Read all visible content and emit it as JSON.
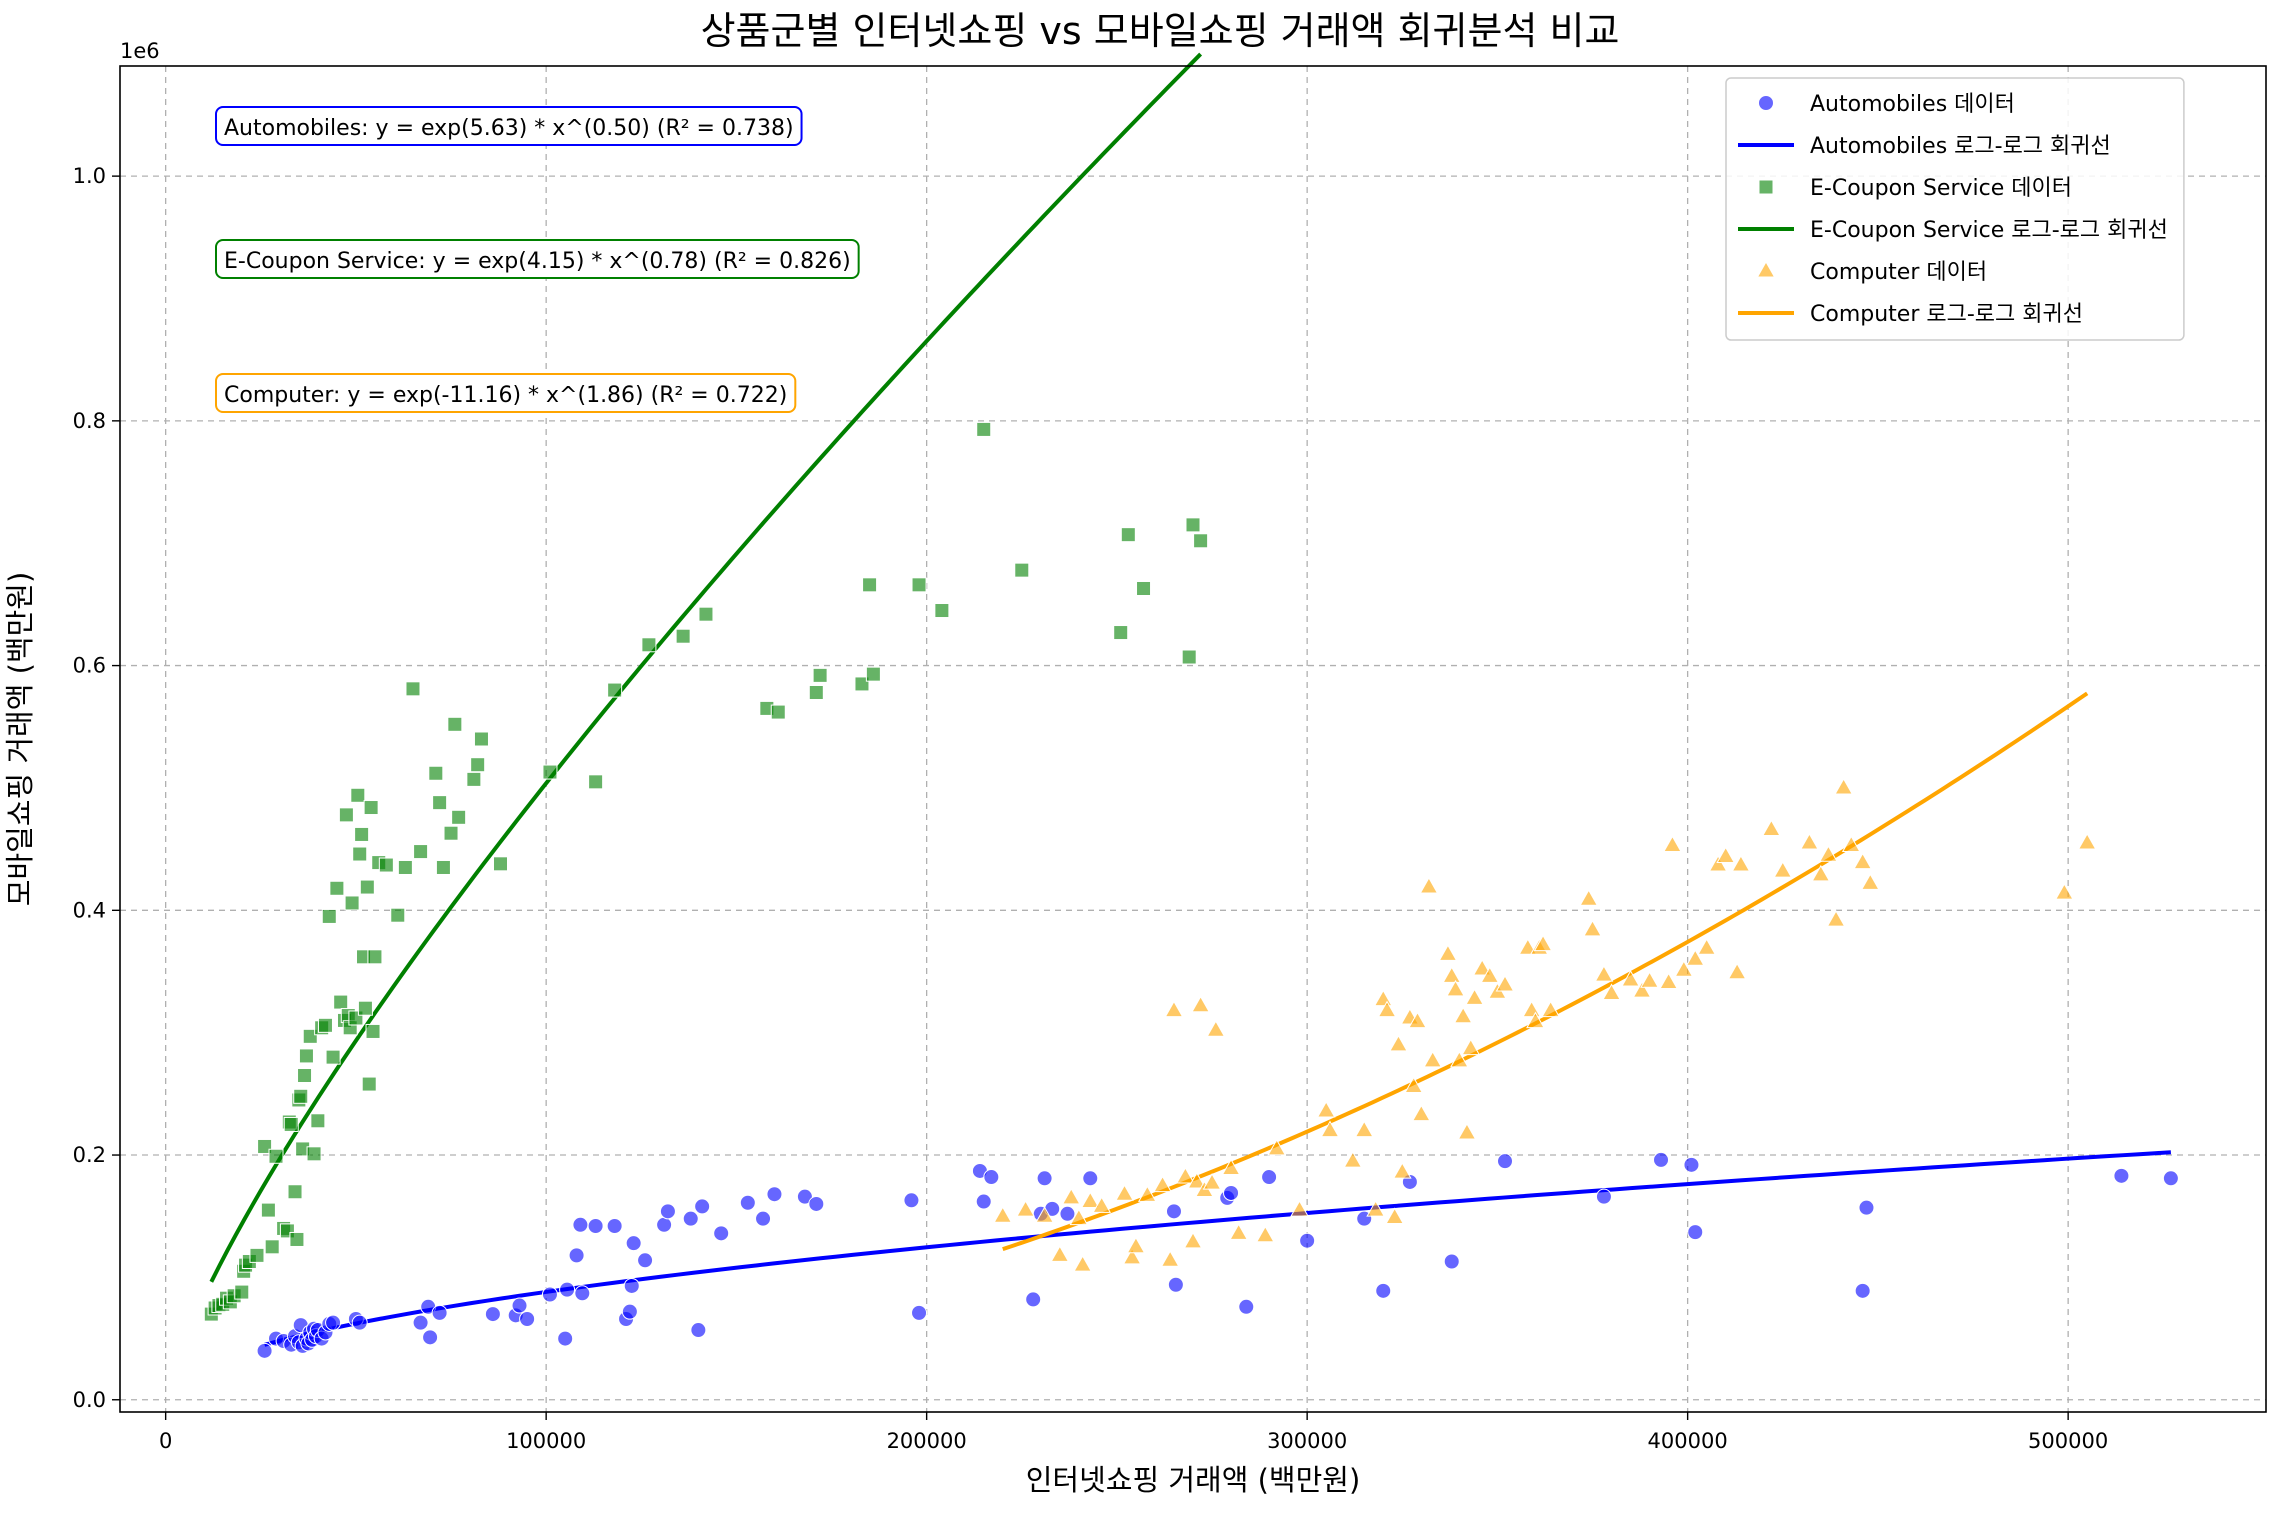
{
  "chart_data": {
    "type": "scatter",
    "title": "상품군별 인터넷쇼핑 vs 모바일쇼핑 거래액 회귀분석 비교",
    "xlabel": "인터넷쇼핑 거래액 (백만원)",
    "ylabel": "모바일쇼핑 거래액 (백만원)",
    "y_offset_label": "1e6",
    "y_scale_factor": 1000000,
    "xlim": [
      -12000,
      552000
    ],
    "ylim": [
      -0.01,
      1.09
    ],
    "x_ticks": [
      0,
      100000,
      200000,
      300000,
      400000,
      500000
    ],
    "x_tick_labels": [
      "0",
      "100000",
      "200000",
      "300000",
      "400000",
      "500000"
    ],
    "y_ticks": [
      0.0,
      0.2,
      0.4,
      0.6,
      0.8,
      1.0
    ],
    "y_tick_labels": [
      "0.0",
      "0.2",
      "0.4",
      "0.6",
      "0.8",
      "1.0"
    ],
    "grid": true,
    "legend_position": "top-right",
    "legend": [
      {
        "label": "Automobiles 데이터",
        "kind": "circle",
        "color": "#0000ff"
      },
      {
        "label": "Automobiles 로그-로그 회귀선",
        "kind": "line",
        "color": "#0000ff"
      },
      {
        "label": "E-Coupon Service 데이터",
        "kind": "square",
        "color": "#008000"
      },
      {
        "label": "E-Coupon Service 로그-로그 회귀선",
        "kind": "line",
        "color": "#008000"
      },
      {
        "label": "Computer 데이터",
        "kind": "triangle",
        "color": "#ffa500"
      },
      {
        "label": "Computer 로그-로그 회귀선",
        "kind": "line",
        "color": "#ffa500"
      }
    ],
    "annotations": [
      {
        "text": "Automobiles: y = exp(5.63) * x^(0.50) (R² = 0.738)",
        "color": "#0000ff"
      },
      {
        "text": "E-Coupon Service: y = exp(4.15) * x^(0.78) (R² = 0.826)",
        "color": "#008000"
      },
      {
        "text": "Computer: y = exp(-11.16) * x^(1.86) (R² = 0.722)",
        "color": "#ffa500"
      }
    ],
    "series": [
      {
        "name": "Automobiles",
        "marker": "circle",
        "color": "#0000ff",
        "fit": {
          "intercept": 5.63,
          "slope": 0.5,
          "r2": 0.738,
          "xrange": [
            26000,
            527000
          ]
        },
        "points": [
          [
            26000,
            0.04
          ],
          [
            29000,
            0.05
          ],
          [
            31000,
            0.048
          ],
          [
            33000,
            0.045
          ],
          [
            34000,
            0.052
          ],
          [
            35000,
            0.047
          ],
          [
            35500,
            0.061
          ],
          [
            36000,
            0.044
          ],
          [
            37000,
            0.05
          ],
          [
            37500,
            0.046
          ],
          [
            38000,
            0.055
          ],
          [
            38500,
            0.049
          ],
          [
            39000,
            0.058
          ],
          [
            39500,
            0.052
          ],
          [
            40000,
            0.057
          ],
          [
            41000,
            0.05
          ],
          [
            42000,
            0.055
          ],
          [
            43000,
            0.062
          ],
          [
            44000,
            0.063
          ],
          [
            50000,
            0.066
          ],
          [
            51000,
            0.063
          ],
          [
            67000,
            0.063
          ],
          [
            69000,
            0.076
          ],
          [
            69500,
            0.051
          ],
          [
            72000,
            0.071
          ],
          [
            86000,
            0.07
          ],
          [
            92000,
            0.069
          ],
          [
            93000,
            0.077
          ],
          [
            95000,
            0.066
          ],
          [
            101000,
            0.086
          ],
          [
            105000,
            0.05
          ],
          [
            105500,
            0.09
          ],
          [
            108000,
            0.118
          ],
          [
            109000,
            0.143
          ],
          [
            109500,
            0.087
          ],
          [
            113000,
            0.142
          ],
          [
            118000,
            0.142
          ],
          [
            121000,
            0.066
          ],
          [
            122000,
            0.072
          ],
          [
            122500,
            0.093
          ],
          [
            123000,
            0.128
          ],
          [
            126000,
            0.114
          ],
          [
            131000,
            0.143
          ],
          [
            132000,
            0.154
          ],
          [
            138000,
            0.148
          ],
          [
            140000,
            0.057
          ],
          [
            141000,
            0.158
          ],
          [
            146000,
            0.136
          ],
          [
            153000,
            0.161
          ],
          [
            157000,
            0.148
          ],
          [
            160000,
            0.168
          ],
          [
            168000,
            0.166
          ],
          [
            171000,
            0.16
          ],
          [
            196000,
            0.163
          ],
          [
            198000,
            0.071
          ],
          [
            214000,
            0.187
          ],
          [
            215000,
            0.162
          ],
          [
            217000,
            0.182
          ],
          [
            228000,
            0.082
          ],
          [
            230000,
            0.152
          ],
          [
            231000,
            0.181
          ],
          [
            233000,
            0.156
          ],
          [
            237000,
            0.152
          ],
          [
            243000,
            0.181
          ],
          [
            265000,
            0.154
          ],
          [
            265500,
            0.094
          ],
          [
            279000,
            0.165
          ],
          [
            280000,
            0.169
          ],
          [
            284000,
            0.076
          ],
          [
            290000,
            0.182
          ],
          [
            300000,
            0.13
          ],
          [
            315000,
            0.148
          ],
          [
            320000,
            0.089
          ],
          [
            327000,
            0.178
          ],
          [
            338000,
            0.113
          ],
          [
            352000,
            0.195
          ],
          [
            378000,
            0.166
          ],
          [
            393000,
            0.196
          ],
          [
            401000,
            0.192
          ],
          [
            402000,
            0.137
          ],
          [
            446000,
            0.089
          ],
          [
            447000,
            0.157
          ],
          [
            514000,
            0.183
          ],
          [
            527000,
            0.181
          ]
        ]
      },
      {
        "name": "E-Coupon Service",
        "marker": "square",
        "color": "#008000",
        "fit": {
          "intercept": 4.15,
          "slope": 0.78,
          "r2": 0.826,
          "xrange": [
            12000,
            272000
          ]
        },
        "points": [
          [
            12000,
            0.07
          ],
          [
            13000,
            0.075
          ],
          [
            14000,
            0.077
          ],
          [
            15000,
            0.078
          ],
          [
            16000,
            0.083
          ],
          [
            17000,
            0.08
          ],
          [
            18000,
            0.085
          ],
          [
            20000,
            0.088
          ],
          [
            20500,
            0.105
          ],
          [
            21000,
            0.11
          ],
          [
            22000,
            0.113
          ],
          [
            24000,
            0.118
          ],
          [
            26000,
            0.207
          ],
          [
            27000,
            0.155
          ],
          [
            28000,
            0.125
          ],
          [
            29000,
            0.199
          ],
          [
            31000,
            0.14
          ],
          [
            32000,
            0.138
          ],
          [
            32500,
            0.227
          ],
          [
            33000,
            0.225
          ],
          [
            34000,
            0.17
          ],
          [
            34500,
            0.131
          ],
          [
            35000,
            0.245
          ],
          [
            35500,
            0.248
          ],
          [
            36000,
            0.205
          ],
          [
            36500,
            0.265
          ],
          [
            37000,
            0.281
          ],
          [
            38000,
            0.297
          ],
          [
            39000,
            0.201
          ],
          [
            40000,
            0.228
          ],
          [
            41000,
            0.304
          ],
          [
            42000,
            0.306
          ],
          [
            43000,
            0.395
          ],
          [
            44000,
            0.28
          ],
          [
            45000,
            0.418
          ],
          [
            46000,
            0.325
          ],
          [
            47000,
            0.31
          ],
          [
            47500,
            0.478
          ],
          [
            48000,
            0.314
          ],
          [
            48500,
            0.304
          ],
          [
            49000,
            0.406
          ],
          [
            50000,
            0.312
          ],
          [
            50500,
            0.494
          ],
          [
            51000,
            0.446
          ],
          [
            51500,
            0.462
          ],
          [
            52000,
            0.362
          ],
          [
            52500,
            0.32
          ],
          [
            53000,
            0.419
          ],
          [
            53500,
            0.258
          ],
          [
            54000,
            0.484
          ],
          [
            54500,
            0.301
          ],
          [
            55000,
            0.362
          ],
          [
            56000,
            0.439
          ],
          [
            58000,
            0.437
          ],
          [
            61000,
            0.396
          ],
          [
            63000,
            0.435
          ],
          [
            65000,
            0.581
          ],
          [
            67000,
            0.448
          ],
          [
            71000,
            0.512
          ],
          [
            72000,
            0.488
          ],
          [
            73000,
            0.435
          ],
          [
            75000,
            0.463
          ],
          [
            76000,
            0.552
          ],
          [
            77000,
            0.476
          ],
          [
            81000,
            0.507
          ],
          [
            82000,
            0.519
          ],
          [
            83000,
            0.54
          ],
          [
            88000,
            0.438
          ],
          [
            101000,
            0.513
          ],
          [
            113000,
            0.505
          ],
          [
            118000,
            0.58
          ],
          [
            127000,
            0.617
          ],
          [
            136000,
            0.624
          ],
          [
            142000,
            0.642
          ],
          [
            158000,
            0.565
          ],
          [
            161000,
            0.562
          ],
          [
            171000,
            0.578
          ],
          [
            172000,
            0.592
          ],
          [
            183000,
            0.585
          ],
          [
            185000,
            0.666
          ],
          [
            186000,
            0.593
          ],
          [
            198000,
            0.666
          ],
          [
            204000,
            0.645
          ],
          [
            215000,
            0.793
          ],
          [
            225000,
            0.678
          ],
          [
            251000,
            0.627
          ],
          [
            253000,
            0.707
          ],
          [
            257000,
            0.663
          ],
          [
            269000,
            0.607
          ],
          [
            270000,
            0.715
          ],
          [
            272000,
            0.702
          ]
        ]
      },
      {
        "name": "Computer",
        "marker": "triangle",
        "color": "#ffa500",
        "fit": {
          "intercept": -11.16,
          "slope": 1.86,
          "r2": 0.722,
          "xrange": [
            220000,
            505000
          ]
        },
        "points": [
          [
            220000,
            0.15
          ],
          [
            226000,
            0.155
          ],
          [
            231000,
            0.15
          ],
          [
            235000,
            0.118
          ],
          [
            238000,
            0.165
          ],
          [
            240000,
            0.148
          ],
          [
            241000,
            0.11
          ],
          [
            243000,
            0.162
          ],
          [
            246000,
            0.158
          ],
          [
            252000,
            0.168
          ],
          [
            254000,
            0.116
          ],
          [
            255000,
            0.125
          ],
          [
            258000,
            0.167
          ],
          [
            262000,
            0.175
          ],
          [
            264000,
            0.114
          ],
          [
            265000,
            0.318
          ],
          [
            268000,
            0.182
          ],
          [
            270000,
            0.129
          ],
          [
            271000,
            0.178
          ],
          [
            272000,
            0.322
          ],
          [
            273000,
            0.171
          ],
          [
            275000,
            0.177
          ],
          [
            276000,
            0.302
          ],
          [
            280000,
            0.189
          ],
          [
            282000,
            0.136
          ],
          [
            289000,
            0.134
          ],
          [
            292000,
            0.205
          ],
          [
            298000,
            0.155
          ],
          [
            305000,
            0.236
          ],
          [
            306000,
            0.22
          ],
          [
            312000,
            0.195
          ],
          [
            315000,
            0.22
          ],
          [
            318000,
            0.155
          ],
          [
            320000,
            0.327
          ],
          [
            321000,
            0.318
          ],
          [
            323000,
            0.149
          ],
          [
            324000,
            0.29
          ],
          [
            325000,
            0.186
          ],
          [
            327000,
            0.312
          ],
          [
            328000,
            0.256
          ],
          [
            329000,
            0.309
          ],
          [
            330000,
            0.233
          ],
          [
            332000,
            0.419
          ],
          [
            333000,
            0.277
          ],
          [
            337000,
            0.364
          ],
          [
            338000,
            0.346
          ],
          [
            339000,
            0.335
          ],
          [
            340000,
            0.277
          ],
          [
            341000,
            0.313
          ],
          [
            342000,
            0.218
          ],
          [
            343000,
            0.287
          ],
          [
            344000,
            0.328
          ],
          [
            346000,
            0.352
          ],
          [
            348000,
            0.346
          ],
          [
            350000,
            0.333
          ],
          [
            352000,
            0.339
          ],
          [
            358000,
            0.369
          ],
          [
            359000,
            0.318
          ],
          [
            360000,
            0.309
          ],
          [
            361000,
            0.369
          ],
          [
            362000,
            0.372
          ],
          [
            364000,
            0.318
          ],
          [
            374000,
            0.409
          ],
          [
            375000,
            0.384
          ],
          [
            378000,
            0.347
          ],
          [
            380000,
            0.332
          ],
          [
            385000,
            0.343
          ],
          [
            388000,
            0.334
          ],
          [
            390000,
            0.342
          ],
          [
            395000,
            0.341
          ],
          [
            396000,
            0.453
          ],
          [
            399000,
            0.351
          ],
          [
            402000,
            0.36
          ],
          [
            405000,
            0.369
          ],
          [
            408000,
            0.437
          ],
          [
            410000,
            0.444
          ],
          [
            413000,
            0.349
          ],
          [
            414000,
            0.437
          ],
          [
            422000,
            0.466
          ],
          [
            425000,
            0.432
          ],
          [
            432000,
            0.455
          ],
          [
            435000,
            0.429
          ],
          [
            437000,
            0.445
          ],
          [
            439000,
            0.392
          ],
          [
            441000,
            0.5
          ],
          [
            443000,
            0.453
          ],
          [
            446000,
            0.439
          ],
          [
            448000,
            0.422
          ],
          [
            499000,
            0.414
          ],
          [
            505000,
            0.455
          ]
        ]
      }
    ]
  }
}
